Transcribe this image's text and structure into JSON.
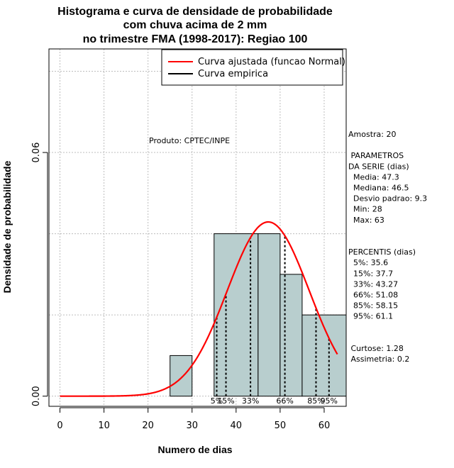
{
  "chart_data": {
    "type": "bar",
    "title_lines": [
      "Histograma e curva de densidade de probabilidade",
      "com chuva acima de 2 mm",
      "no trimestre FMA (1998-2017): Regiao 100"
    ],
    "xlabel": "Numero de dias",
    "ylabel": "Densidade de probabilidade",
    "xlim": [
      -2.5,
      65
    ],
    "ylim": [
      -0.0025,
      0.0855
    ],
    "x_ticks": [
      "0",
      "10",
      "20",
      "30",
      "40",
      "50",
      "60"
    ],
    "y_ticks": [
      "0.00",
      "0.06"
    ],
    "grid": true,
    "legend_position": "top-right",
    "legend": [
      {
        "label": "Curva ajustada (funcao Normal)",
        "color": "#ff0000"
      },
      {
        "label": "Curva empirica",
        "color": "#000000"
      }
    ],
    "bins": [
      {
        "x0": 25,
        "x1": 30,
        "density": 0.01
      },
      {
        "x0": 30,
        "x1": 35,
        "density": 0.0
      },
      {
        "x0": 35,
        "x1": 45,
        "density": 0.04
      },
      {
        "x0": 45,
        "x1": 50,
        "density": 0.04
      },
      {
        "x0": 50,
        "x1": 55,
        "density": 0.03
      },
      {
        "x0": 55,
        "x1": 65,
        "density": 0.02
      }
    ],
    "bar_color": "#b8cece",
    "normal_fit": {
      "mean": 47.3,
      "sd": 9.3,
      "x_from": 0,
      "x_to": 63,
      "color": "#ff0000"
    },
    "percentile_marks": [
      {
        "label": "5%",
        "x": 35.6
      },
      {
        "label": "15%",
        "x": 37.7
      },
      {
        "label": "33%",
        "x": 43.27
      },
      {
        "label": "66%",
        "x": 51.08
      },
      {
        "label": "85%",
        "x": 58.15
      },
      {
        "label": "95%",
        "x": 61.1
      }
    ],
    "annotation_producer": "Produto: CPTEC/INPE",
    "stats_lines": [
      "Amostra: 20",
      "",
      " PARAMETROS",
      "DA SERIE (dias)",
      "  Media: 47.3",
      "  Mediana: 46.5",
      "  Desvio padrao: 9.3",
      "  Min: 28",
      "  Max: 63",
      "",
      "",
      "PERCENTIS (dias)",
      "  5%: 35.6",
      "  15%: 37.7",
      "  33%: 43.27",
      "  66%: 51.08",
      "  85%: 58.15",
      "  95%: 61.1",
      "",
      "",
      " Curtose: 1.28",
      " Assimetria: 0.2"
    ]
  }
}
